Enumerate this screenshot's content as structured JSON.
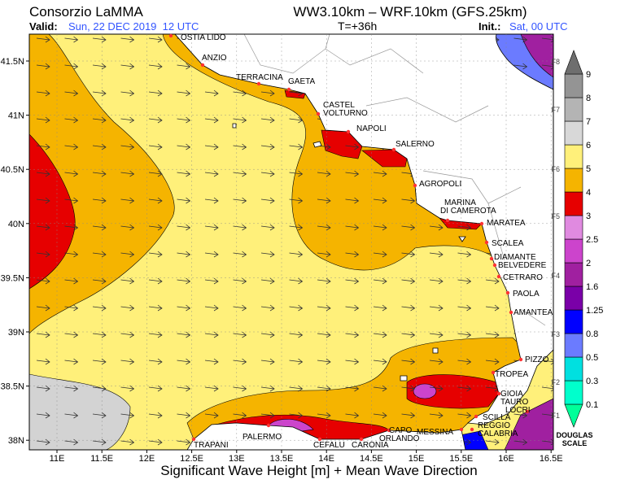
{
  "header": {
    "org": "Consorzio LaMMA",
    "model": "WW3.10km – WRF.10km (GFS.25km)",
    "valid_label": "Valid:",
    "valid": "Sun, 22 DEC 2019  12 UTC",
    "lead": "T=+36h",
    "init_label": "Init.:",
    "init": "Sat, 00 UTC"
  },
  "axes": {
    "lat": [
      "41.5N",
      "41N",
      "40.5N",
      "40N",
      "39.5N",
      "39N",
      "38.5N",
      "38N"
    ],
    "lon": [
      "11E",
      "11.5E",
      "12E",
      "12.5E",
      "13E",
      "13.5E",
      "14E",
      "14.5E",
      "15E",
      "15.5E",
      "16E",
      "16.5E"
    ]
  },
  "caption": "Significant Wave Height [m] + Mean Wave Direction",
  "places": [
    [
      "OSTIA LIDO"
    ],
    [
      "ANZIO"
    ],
    [
      "TERRACINA"
    ],
    [
      "GAETA"
    ],
    [
      "CASTEL",
      "VOLTURNO"
    ],
    [
      "NAPOLI"
    ],
    [
      "SALERNO"
    ],
    [
      "AGROPOLI"
    ],
    [
      "MARINA",
      "DI CAMEROTA"
    ],
    [
      "MARATEA"
    ],
    [
      "SCALEA"
    ],
    [
      "DIAMANTE"
    ],
    [
      "BELVEDERE"
    ],
    [
      "CETRARO"
    ],
    [
      "PAOLA"
    ],
    [
      "AMANTEA"
    ],
    [
      "PIZZO"
    ],
    [
      "TROPEA"
    ],
    [
      "GIOIA",
      "TAURO"
    ],
    [
      "LOCRI"
    ],
    [
      "SCILLA"
    ],
    [
      "REGGIO",
      "CALABRIA"
    ],
    [
      "MESSINA"
    ],
    [
      "CAPO",
      "ORLANDO"
    ],
    [
      "CARONIA"
    ],
    [
      "CEFALU"
    ],
    [
      "PALERMO"
    ],
    [
      "TRAPANI"
    ]
  ],
  "scale": {
    "levels": [
      0.1,
      0.3,
      0.5,
      0.8,
      1.25,
      1.6,
      2,
      2.5,
      3,
      4,
      5,
      6,
      7,
      8,
      9
    ],
    "colors": [
      "#00ff99",
      "#00ffcc",
      "#00e0e0",
      "#6b7bff",
      "#0000ff",
      "#7a00a8",
      "#a020a0",
      "#cc44cc",
      "#e08ae0",
      "#e60000",
      "#f5b400",
      "#fff07a",
      "#d8d8d8",
      "#b4b4b4",
      "#949494",
      "#6e6e6e"
    ],
    "beaufort": [
      "F1",
      "F2",
      "F3",
      "F4",
      "F5",
      "F6",
      "F7",
      "F8"
    ],
    "name": [
      "DOUGLAS",
      "SCALE"
    ]
  }
}
